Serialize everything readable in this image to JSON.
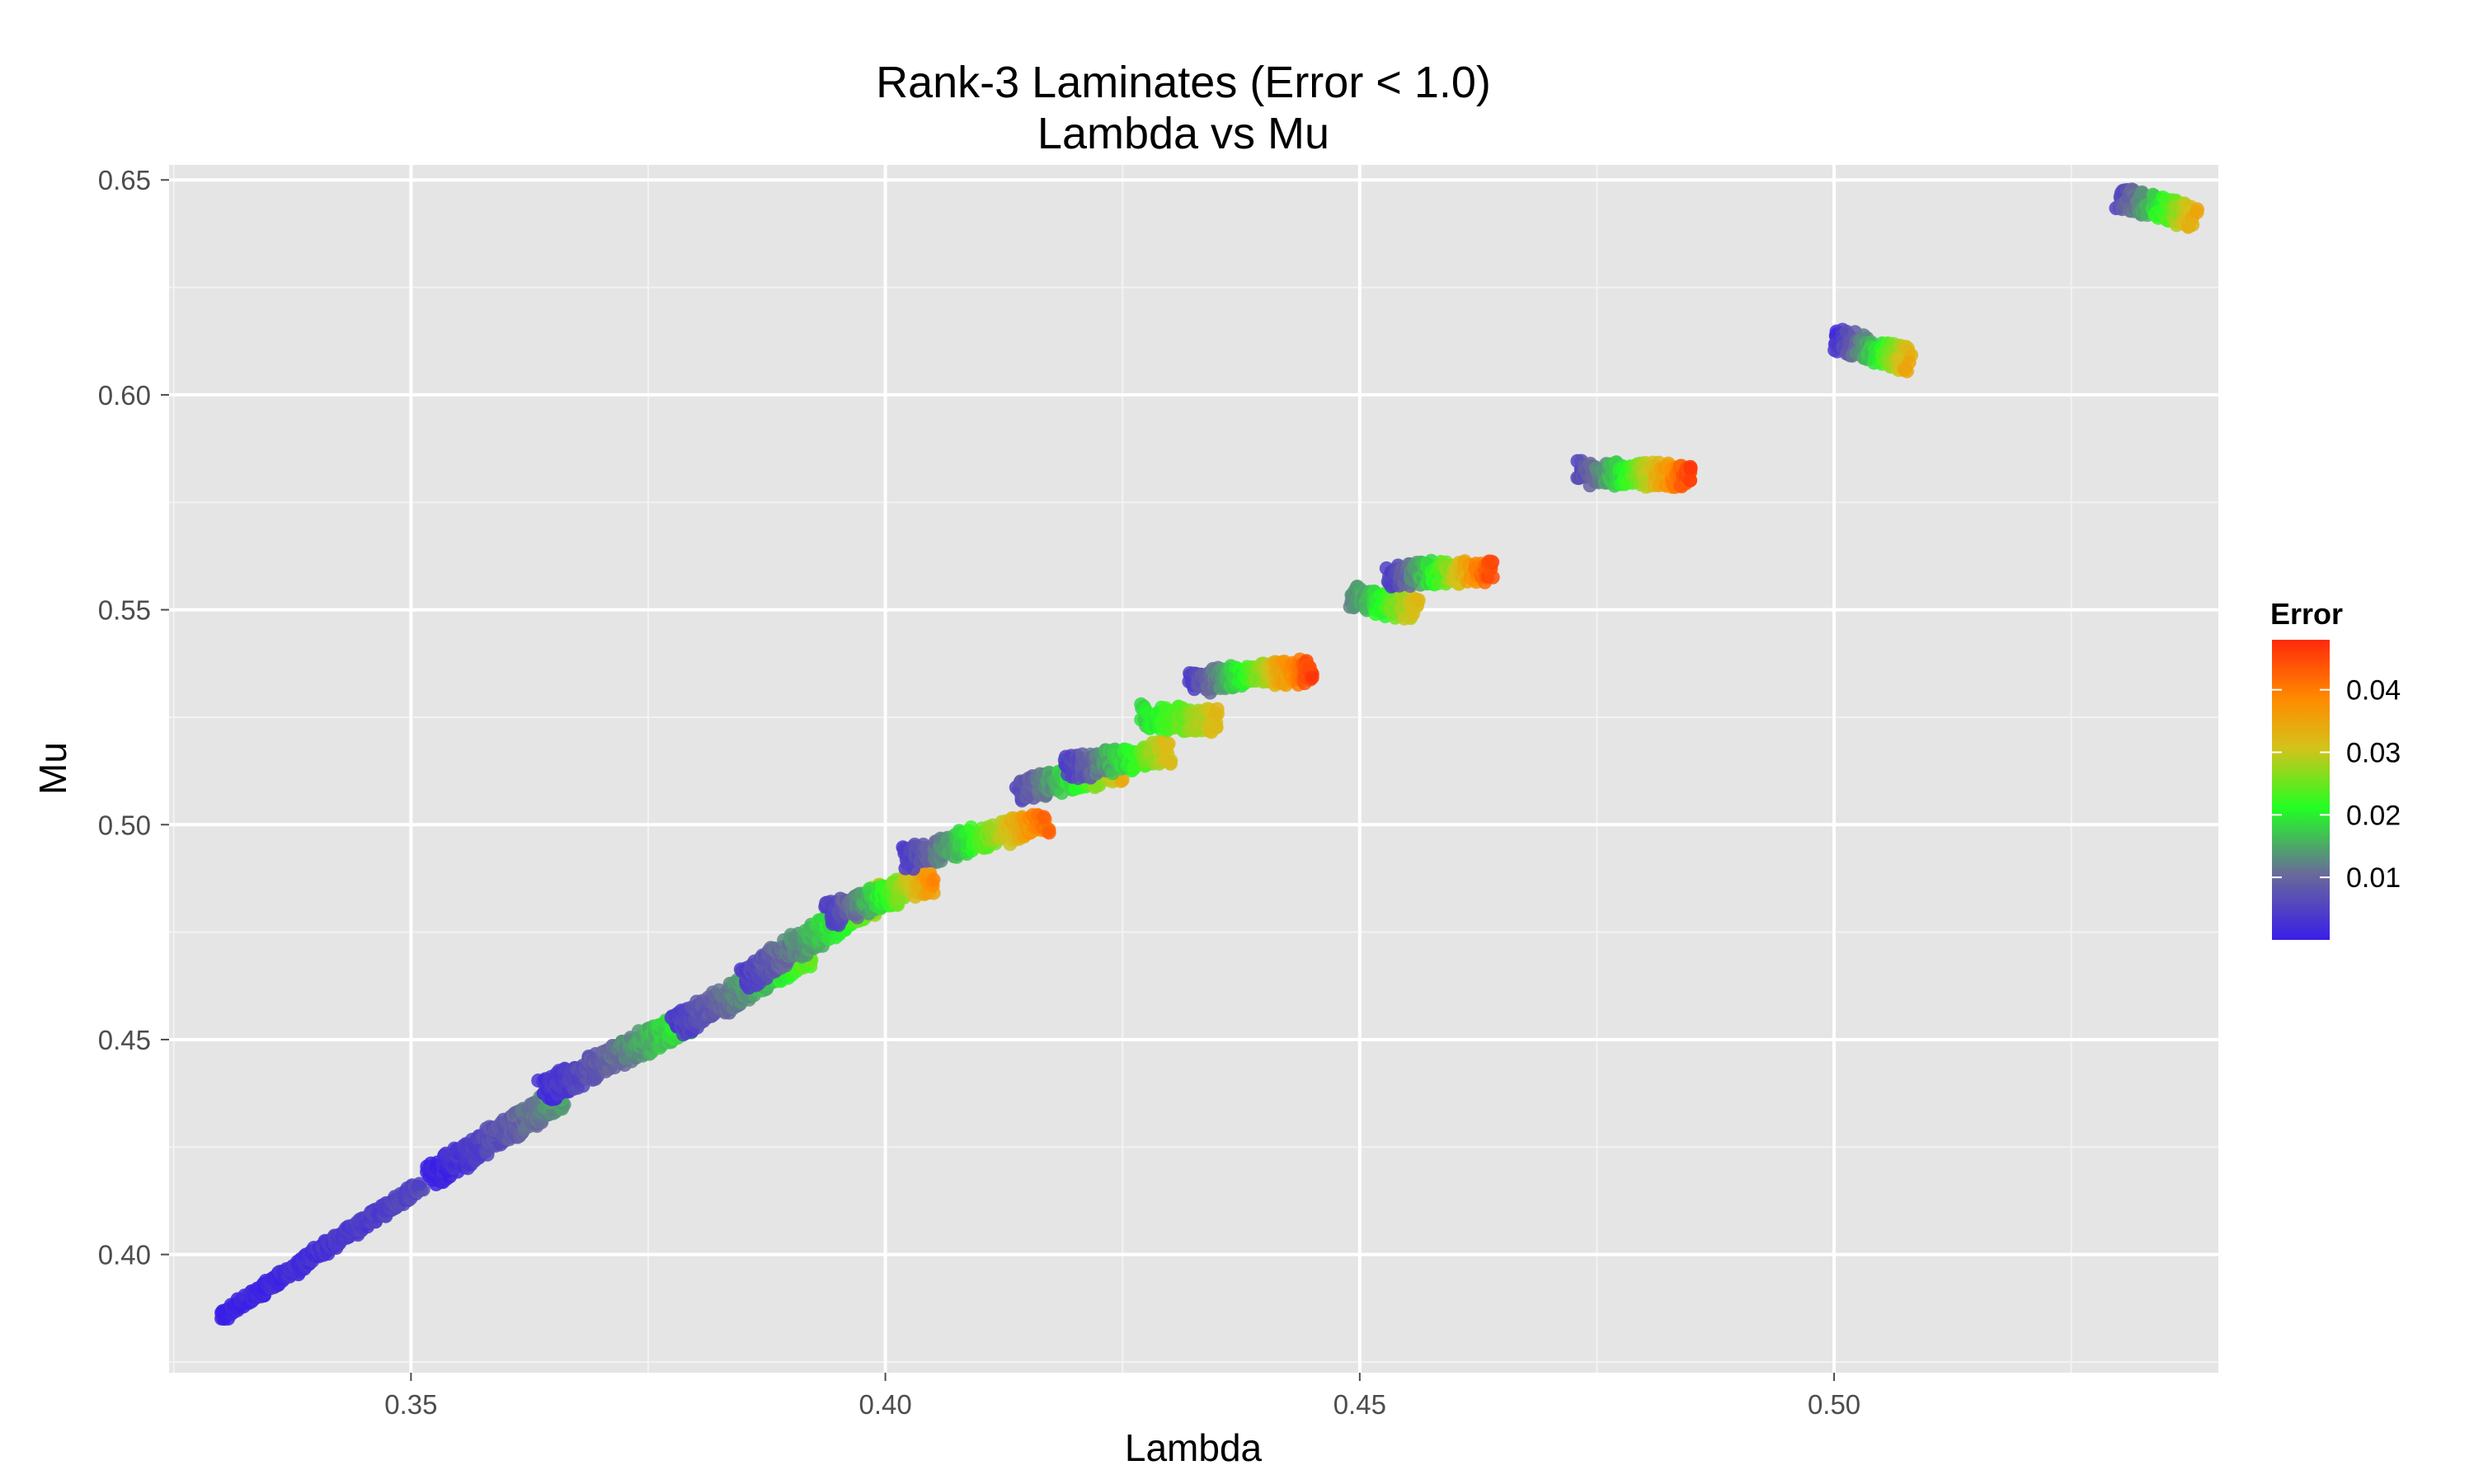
{
  "chart_data": {
    "type": "scatter",
    "title_line1": "Rank-3 Laminates (Error < 1.0)",
    "title_line2": "Lambda vs Mu",
    "xlabel": "Lambda",
    "ylabel": "Mu",
    "xlim": [
      0.3245,
      0.5405
    ],
    "ylim": [
      0.3725,
      0.6535
    ],
    "xticks": [
      0.35,
      0.4,
      0.45,
      0.5
    ],
    "xtick_labels": [
      "0.35",
      "0.40",
      "0.45",
      "0.50"
    ],
    "yticks": [
      0.4,
      0.45,
      0.5,
      0.55,
      0.6,
      0.65
    ],
    "ytick_labels": [
      "0.40",
      "0.45",
      "0.50",
      "0.55",
      "0.60",
      "0.65"
    ],
    "grid": true,
    "background": "#e5e5e5",
    "color_scale": {
      "title": "Error",
      "min": 0.0,
      "max": 0.048,
      "ticks": [
        0.01,
        0.02,
        0.03,
        0.04
      ],
      "tick_labels": [
        "0.01",
        "0.02",
        "0.03",
        "0.04"
      ],
      "colors": [
        "#3a1ee8",
        "#6a6a9a",
        "#22ff22",
        "#d4c21a",
        "#ff8c00",
        "#ff2a0a"
      ],
      "legend_position": "right"
    },
    "clusters": [
      {
        "lambda_start": 0.33,
        "mu_start": 0.3855,
        "lambda_end": 0.351,
        "mu_end": 0.416,
        "error_min": 0.0,
        "error_max": 0.006
      },
      {
        "lambda_start": 0.352,
        "mu_start": 0.418,
        "lambda_end": 0.366,
        "mu_end": 0.437,
        "error_min": 0.0,
        "error_max": 0.015
      },
      {
        "lambda_start": 0.364,
        "mu_start": 0.438,
        "lambda_end": 0.38,
        "mu_end": 0.455,
        "error_min": 0.002,
        "error_max": 0.022
      },
      {
        "lambda_start": 0.378,
        "mu_start": 0.453,
        "lambda_end": 0.392,
        "mu_end": 0.47,
        "error_min": 0.004,
        "error_max": 0.025
      },
      {
        "lambda_start": 0.385,
        "mu_start": 0.464,
        "lambda_end": 0.4,
        "mu_end": 0.484,
        "error_min": 0.004,
        "error_max": 0.03
      },
      {
        "lambda_start": 0.394,
        "mu_start": 0.479,
        "lambda_end": 0.405,
        "mu_end": 0.487,
        "error_min": 0.004,
        "error_max": 0.038
      },
      {
        "lambda_start": 0.402,
        "mu_start": 0.492,
        "lambda_end": 0.417,
        "mu_end": 0.501,
        "error_min": 0.004,
        "error_max": 0.042
      },
      {
        "lambda_start": 0.414,
        "mu_start": 0.508,
        "lambda_end": 0.425,
        "mu_end": 0.513,
        "error_min": 0.006,
        "error_max": 0.034
      },
      {
        "lambda_start": 0.419,
        "mu_start": 0.513,
        "lambda_end": 0.43,
        "mu_end": 0.517,
        "error_min": 0.004,
        "error_max": 0.032
      },
      {
        "lambda_start": 0.427,
        "mu_start": 0.525,
        "lambda_end": 0.435,
        "mu_end": 0.524,
        "error_min": 0.018,
        "error_max": 0.032
      },
      {
        "lambda_start": 0.432,
        "mu_start": 0.533,
        "lambda_end": 0.445,
        "mu_end": 0.536,
        "error_min": 0.004,
        "error_max": 0.046
      },
      {
        "lambda_start": 0.449,
        "mu_start": 0.553,
        "lambda_end": 0.456,
        "mu_end": 0.55,
        "error_min": 0.012,
        "error_max": 0.032
      },
      {
        "lambda_start": 0.453,
        "mu_start": 0.558,
        "lambda_end": 0.464,
        "mu_end": 0.559,
        "error_min": 0.004,
        "error_max": 0.046
      },
      {
        "lambda_start": 0.473,
        "mu_start": 0.582,
        "lambda_end": 0.485,
        "mu_end": 0.581,
        "error_min": 0.006,
        "error_max": 0.046
      },
      {
        "lambda_start": 0.5,
        "mu_start": 0.613,
        "lambda_end": 0.508,
        "mu_end": 0.608,
        "error_min": 0.002,
        "error_max": 0.034
      },
      {
        "lambda_start": 0.53,
        "mu_start": 0.646,
        "lambda_end": 0.538,
        "mu_end": 0.641,
        "error_min": 0.006,
        "error_max": 0.034
      }
    ]
  }
}
